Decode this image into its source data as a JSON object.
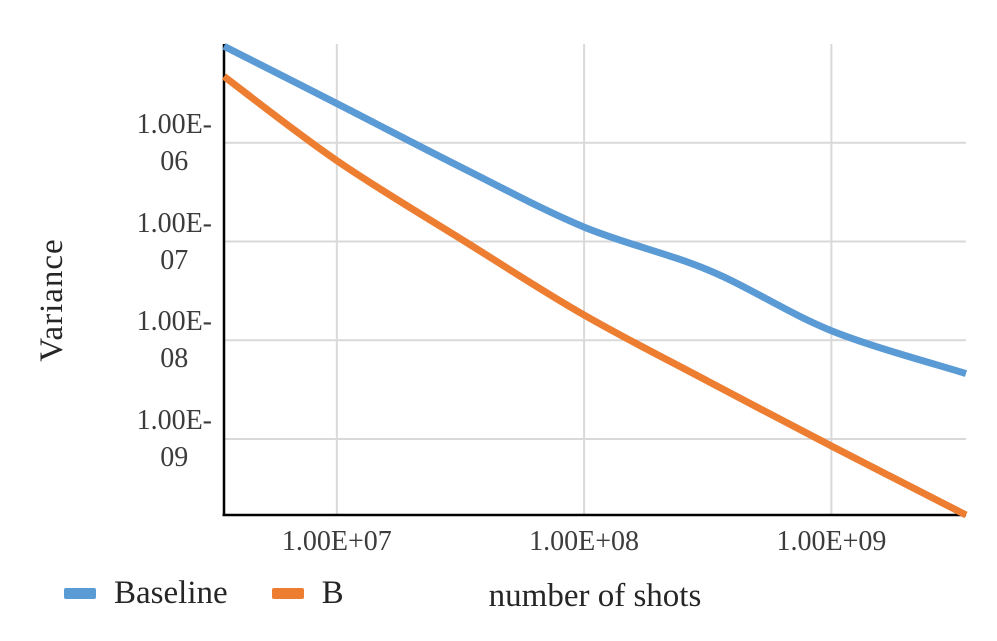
{
  "figure": {
    "y_axis_title": "Variance",
    "x_axis_title": "number of shots"
  },
  "legend": {
    "items": [
      {
        "label": "Baseline",
        "color": "#5B9BD5"
      },
      {
        "label": "B",
        "color": "#ED7D31"
      }
    ]
  },
  "colors": {
    "baseline_series": "#5B9BD5",
    "b_series": "#ED7D31",
    "gridline": "#D9D9D9",
    "axis": "#000000"
  },
  "chart_data": {
    "type": "line",
    "title": "",
    "xlabel": "number of shots",
    "ylabel": "Variance",
    "x_scale": "log",
    "y_scale": "log",
    "xlim": [
      3500000.0,
      3500000000.0
    ],
    "ylim": [
      1.7e-10,
      1e-05
    ],
    "grid": true,
    "legend_position": "bottom-left",
    "x_ticks": [
      {
        "value": 10000000.0,
        "label": "1.00E+07"
      },
      {
        "value": 100000000.0,
        "label": "1.00E+08"
      },
      {
        "value": 1000000000.0,
        "label": "1.00E+09"
      }
    ],
    "y_ticks": [
      {
        "value": 1e-06,
        "label_lines": [
          "1.00E-",
          "06"
        ]
      },
      {
        "value": 1e-07,
        "label_lines": [
          "1.00E-",
          "07"
        ]
      },
      {
        "value": 1e-08,
        "label_lines": [
          "1.00E-",
          "08"
        ]
      },
      {
        "value": 1e-09,
        "label_lines": [
          "1.00E-",
          "09"
        ]
      }
    ],
    "series": [
      {
        "name": "Baseline",
        "color": "#5B9BD5",
        "points": [
          [
            3500000.0,
            9.5e-06
          ],
          [
            10000000.0,
            2.5e-06
          ],
          [
            33000000.0,
            5.4e-07
          ],
          [
            100000000.0,
            1.4e-07
          ],
          [
            320000000.0,
            5.1e-08
          ],
          [
            1000000000.0,
            1.25e-08
          ],
          [
            3500000000.0,
            4.6e-09
          ]
        ]
      },
      {
        "name": "B",
        "color": "#ED7D31",
        "points": [
          [
            3500000.0,
            4.7e-06
          ],
          [
            10000000.0,
            6.6e-07
          ],
          [
            33000000.0,
            1e-07
          ],
          [
            100000000.0,
            1.8e-08
          ],
          [
            320000000.0,
            3.8e-09
          ],
          [
            1000000000.0,
            8.5e-10
          ],
          [
            3500000000.0,
            1.7e-10
          ]
        ]
      }
    ]
  }
}
